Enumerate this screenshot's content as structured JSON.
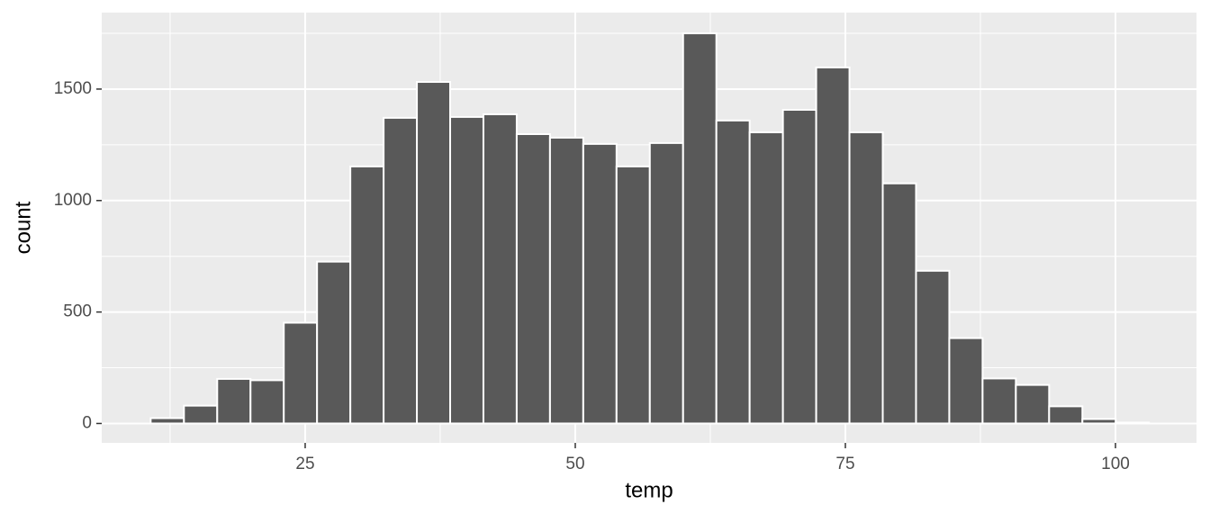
{
  "chart_data": {
    "type": "histogram",
    "x_label": "temp",
    "y_label": "count",
    "bins": [
      10.7,
      13.78,
      16.86,
      19.94,
      23.02,
      26.1,
      29.18,
      32.26,
      35.34,
      38.42,
      41.5,
      44.58,
      47.66,
      50.74,
      53.82,
      56.9,
      59.98,
      63.06,
      66.14,
      69.22,
      72.3,
      75.38,
      78.46,
      81.54,
      84.62,
      87.7,
      90.78,
      93.86,
      96.94,
      100.02,
      103.1
    ],
    "values": [
      24,
      80,
      200,
      194,
      452,
      726,
      1153,
      1371,
      1532,
      1375,
      1387,
      1298,
      1282,
      1254,
      1153,
      1258,
      1750,
      1359,
      1306,
      1407,
      1597,
      1306,
      1077,
      685,
      383,
      202,
      173,
      77,
      20,
      4
    ],
    "color": "#595959",
    "xlim": [
      6.17,
      107.5
    ],
    "xticks": [
      25,
      50,
      75,
      100
    ],
    "ylim": [
      -87,
      1843
    ],
    "yticks": [
      0,
      500,
      1000,
      1500
    ],
    "grid": true
  }
}
